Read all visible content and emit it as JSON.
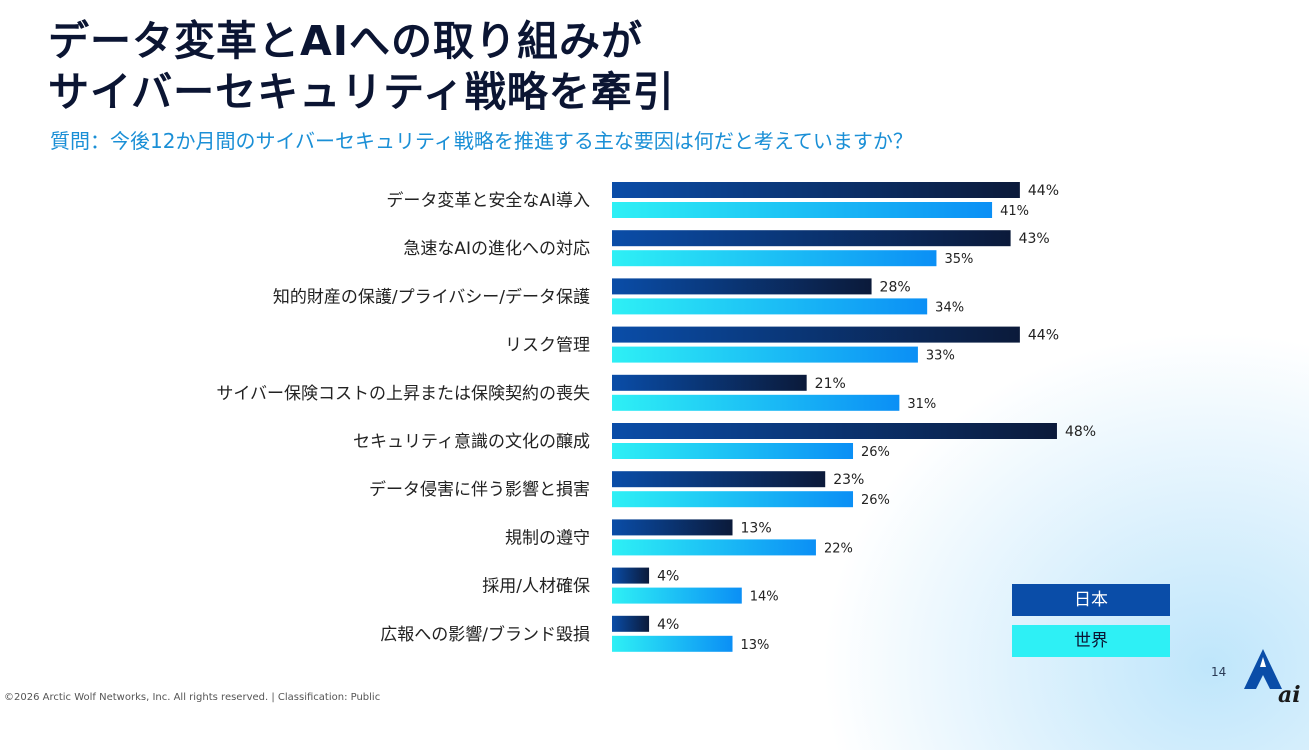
{
  "title": {
    "line1": "データ変革とAIへの取り組みが",
    "line2": "サイバーセキュリティ戦略を牽引"
  },
  "subtitle": "質問：今後12か月間のサイバーセキュリティ戦略を推進する主な要因は何だと考えていますか？",
  "chart_data": {
    "type": "bar",
    "orientation": "horizontal",
    "categories": [
      "データ変革と安全なAI導入",
      "急速なAIの進化への対応",
      "知的財産の保護/プライバシー/データ保護",
      "リスク管理",
      "サイバー保険コストの上昇または保険契約の喪失",
      "セキュリティ意識の文化の醸成",
      "データ侵害に伴う影響と損害",
      "規制の遵守",
      "採用/人材確保",
      "広報への影響/ブランド毀損"
    ],
    "series": [
      {
        "name": "日本",
        "values": [
          44,
          43,
          28,
          44,
          21,
          48,
          23,
          13,
          4,
          4
        ],
        "color": "#0a4da8"
      },
      {
        "name": "世界",
        "values": [
          41,
          35,
          34,
          33,
          31,
          26,
          26,
          22,
          14,
          13
        ],
        "color": "#2ef0f5"
      }
    ],
    "value_suffix": "%",
    "legend_position": "bottom-right",
    "grid": false
  },
  "legend": {
    "japan": "日本",
    "world": "世界"
  },
  "page_number": "14",
  "footer": "©2026 Arctic Wolf Networks, Inc. All rights reserved.  |  Classification: Public",
  "logo_text": "ai"
}
